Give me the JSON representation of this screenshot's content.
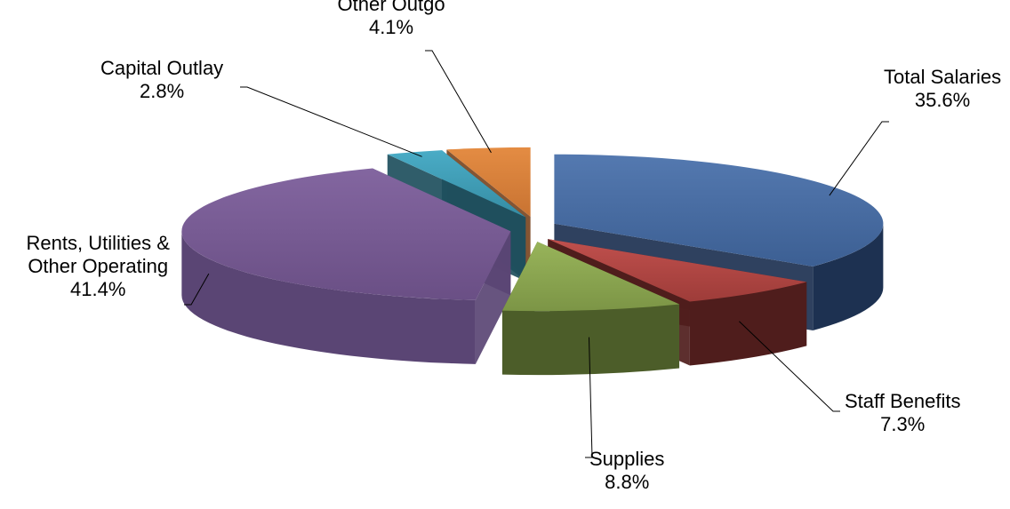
{
  "chart_data": {
    "type": "pie",
    "title": "",
    "slices": [
      {
        "name": "Total Salaries",
        "label_lines": [
          "Total Salaries"
        ],
        "percent": "35.6%",
        "value": 35.6,
        "color": "#4a6fa5"
      },
      {
        "name": "Staff Benefits",
        "label_lines": [
          "Staff Benefits"
        ],
        "percent": "7.3%",
        "value": 7.3,
        "color": "#b34744"
      },
      {
        "name": "Supplies",
        "label_lines": [
          "Supplies"
        ],
        "percent": "8.8%",
        "value": 8.8,
        "color": "#8ba44e"
      },
      {
        "name": "Rents, Utilities & Other Operating",
        "label_lines": [
          "Rents, Utilities &",
          "Other Operating"
        ],
        "percent": "41.4%",
        "value": 41.4,
        "color": "#7a5b94"
      },
      {
        "name": "Capital Outlay",
        "label_lines": [
          "Capital Outlay"
        ],
        "percent": "2.8%",
        "value": 2.8,
        "color": "#3f9bb3"
      },
      {
        "name": "Other Outgo",
        "label_lines": [
          "Other Outgo"
        ],
        "percent": "4.1%",
        "value": 4.1,
        "color": "#d9823b"
      }
    ],
    "exploded": true,
    "style": "3d",
    "legend": "none"
  }
}
